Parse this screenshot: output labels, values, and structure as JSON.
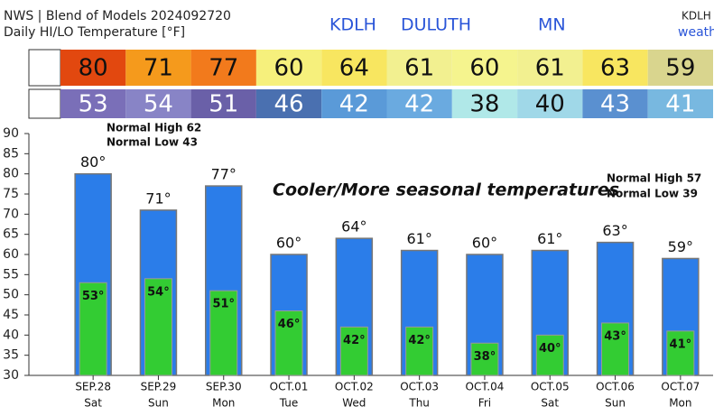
{
  "header": {
    "line1": "NWS | Blend of Models 2024092720",
    "line2": "Daily HI/LO Temperature [°F]",
    "station": "KDLH",
    "city": "DULUTH",
    "state": "MN",
    "corner_station": "KDLH",
    "corner_text": "weath"
  },
  "chart_data": {
    "type": "bar",
    "categories": [
      "SEP.28",
      "SEP.29",
      "SEP.30",
      "OCT.01",
      "OCT.02",
      "OCT.03",
      "OCT.04",
      "OCT.05",
      "OCT.06",
      "OCT.07"
    ],
    "days": [
      "Sat",
      "Sun",
      "Mon",
      "Tue",
      "Wed",
      "Thu",
      "Fri",
      "Sat",
      "Sun",
      "Mon"
    ],
    "series": [
      {
        "color": "#2b7de9",
        "values": [
          80,
          71,
          77,
          60,
          64,
          61,
          60,
          61,
          63,
          59
        ],
        "value_labels": [
          "80°",
          "71°",
          "77°",
          "60°",
          "64°",
          "61°",
          "60°",
          "61°",
          "63°",
          "59°"
        ],
        "box_colors": [
          "#e2480f",
          "#f59a1c",
          "#f27a1c",
          "#f6f07c",
          "#f8e660",
          "#f2f090",
          "#f5f48e",
          "#f2f090",
          "#f8e660",
          "#d9d58e"
        ]
      },
      {
        "color": "#33cc33",
        "values": [
          53,
          54,
          51,
          46,
          42,
          42,
          38,
          40,
          43,
          41
        ],
        "value_labels": [
          "53°",
          "54°",
          "51°",
          "46°",
          "42°",
          "42°",
          "38°",
          "40°",
          "43°",
          "41°"
        ],
        "box_colors": [
          "#7a6fb8",
          "#8884c6",
          "#6a60a8",
          "#4a70b0",
          "#5a9ad8",
          "#6aaae0",
          "#b0e8e8",
          "#a0d8e8",
          "#5a90d0",
          "#78b8e0"
        ]
      }
    ],
    "ylim": [
      30,
      90
    ],
    "yticks": [
      30,
      35,
      40,
      45,
      50,
      55,
      60,
      65,
      70,
      75,
      80,
      85,
      90
    ],
    "annotations": [
      "Normal High 62",
      "Normal Low 43",
      "Cooler/More seasonal temperatures",
      "Normal High 57",
      "Normal Low 39"
    ]
  }
}
